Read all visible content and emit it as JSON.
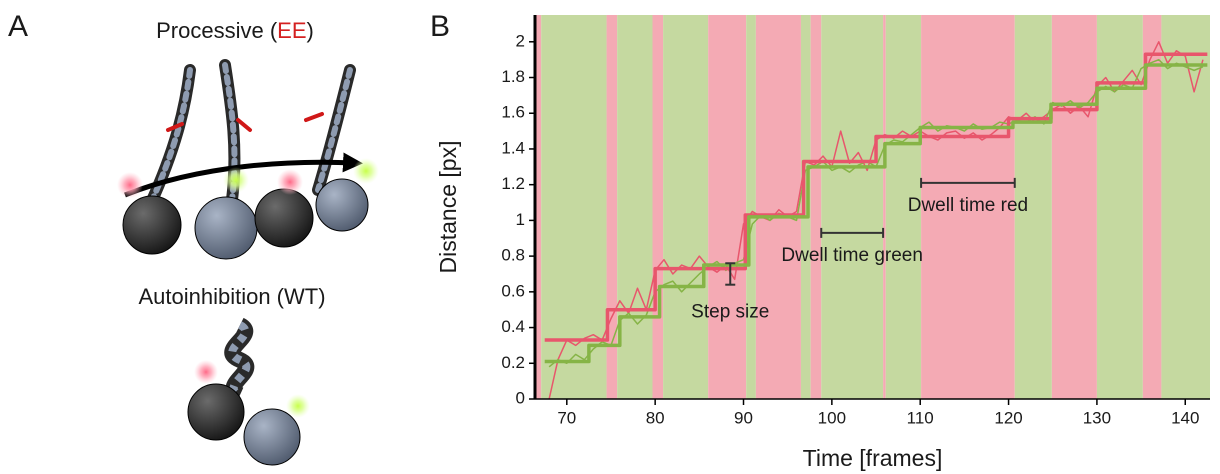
{
  "panel_a": {
    "label": "A",
    "title_parts": [
      "Processive (",
      "EE",
      ")"
    ],
    "subtitle": "Autoinhibition (WT)"
  },
  "chart_data": {
    "type": "line",
    "panel_label": "B",
    "x_label": "Time [frames]",
    "y_label": "Distance [px]",
    "xlim": [
      66.4,
      142.8
    ],
    "ylim": [
      0,
      2.15
    ],
    "xticks": [
      70,
      80,
      90,
      100,
      110,
      120,
      130,
      140
    ],
    "yticks": [
      0,
      0.2,
      0.4,
      0.6,
      0.8,
      1,
      1.2,
      1.4,
      1.6,
      1.8,
      2
    ],
    "bands": [
      {
        "x": [
          66.4,
          67.1
        ],
        "color": "#f4aab4"
      },
      {
        "x": [
          67.1,
          74.5
        ],
        "color": "#c5d9a0"
      },
      {
        "x": [
          74.5,
          75.7
        ],
        "color": "#f4aab4"
      },
      {
        "x": [
          75.7,
          79.7
        ],
        "color": "#c5d9a0"
      },
      {
        "x": [
          79.7,
          80.9
        ],
        "color": "#f4aab4"
      },
      {
        "x": [
          80.9,
          86.0
        ],
        "color": "#c5d9a0"
      },
      {
        "x": [
          86.0,
          90.3
        ],
        "color": "#f4aab4"
      },
      {
        "x": [
          90.3,
          91.4
        ],
        "color": "#c5d9a0"
      },
      {
        "x": [
          91.4,
          96.5
        ],
        "color": "#f4aab4"
      },
      {
        "x": [
          96.5,
          97.6
        ],
        "color": "#c5d9a0"
      },
      {
        "x": [
          97.6,
          98.8
        ],
        "color": "#f4aab4"
      },
      {
        "x": [
          98.8,
          105.8
        ],
        "color": "#c5d9a0"
      },
      {
        "x": [
          105.8,
          106.1
        ],
        "color": "#f4aab4"
      },
      {
        "x": [
          106.1,
          110.1
        ],
        "color": "#c5d9a0"
      },
      {
        "x": [
          110.1,
          120.7
        ],
        "color": "#f4aab4"
      },
      {
        "x": [
          120.7,
          124.9
        ],
        "color": "#c5d9a0"
      },
      {
        "x": [
          124.9,
          130.0
        ],
        "color": "#f4aab4"
      },
      {
        "x": [
          130.0,
          135.2
        ],
        "color": "#c5d9a0"
      },
      {
        "x": [
          135.2,
          137.3
        ],
        "color": "#f4aab4"
      },
      {
        "x": [
          137.3,
          142.8
        ],
        "color": "#c5d9a0"
      }
    ],
    "x": [
      68,
      69,
      70,
      71,
      72,
      73,
      74,
      75,
      76,
      77,
      78,
      79,
      80,
      81,
      82,
      83,
      84,
      85,
      86,
      87,
      88,
      89,
      90,
      91,
      92,
      93,
      94,
      95,
      96,
      97,
      98,
      99,
      100,
      101,
      102,
      103,
      104,
      105,
      106,
      107,
      108,
      109,
      110,
      111,
      112,
      113,
      114,
      115,
      116,
      117,
      118,
      119,
      120,
      121,
      122,
      123,
      124,
      125,
      126,
      127,
      128,
      129,
      130,
      131,
      132,
      133,
      134,
      135,
      136,
      137,
      138,
      139,
      140,
      141,
      142
    ],
    "series": [
      {
        "color": "#e8566c",
        "width": 1.5,
        "values": [
          0.0,
          0.22,
          0.33,
          0.3,
          0.34,
          0.36,
          0.33,
          0.45,
          0.55,
          0.48,
          0.62,
          0.5,
          0.72,
          0.78,
          0.7,
          0.75,
          0.73,
          0.8,
          0.74,
          0.71,
          0.75,
          0.67,
          0.98,
          1.05,
          1.02,
          1.0,
          1.06,
          1.02,
          1.05,
          1.33,
          1.31,
          1.36,
          1.3,
          1.5,
          1.32,
          1.38,
          1.28,
          1.45,
          1.48,
          1.46,
          1.5,
          1.47,
          1.5,
          1.47,
          1.45,
          1.49,
          1.5,
          1.46,
          1.49,
          1.45,
          1.48,
          1.52,
          1.58,
          1.56,
          1.6,
          1.55,
          1.58,
          1.62,
          1.65,
          1.6,
          1.64,
          1.58,
          1.75,
          1.8,
          1.72,
          1.78,
          1.84,
          1.76,
          1.9,
          2.0,
          1.88,
          1.95,
          1.92,
          1.72,
          1.9
        ]
      },
      {
        "color": "#86b446",
        "width": 1.5,
        "values": [
          0.18,
          0.22,
          0.2,
          0.25,
          0.22,
          0.28,
          0.32,
          0.3,
          0.44,
          0.48,
          0.42,
          0.47,
          0.6,
          0.64,
          0.66,
          0.6,
          0.65,
          0.7,
          0.74,
          0.77,
          0.72,
          0.76,
          0.78,
          0.98,
          1.03,
          1.0,
          1.04,
          1.02,
          1.0,
          1.28,
          1.3,
          1.33,
          1.28,
          1.3,
          1.27,
          1.31,
          1.33,
          1.3,
          1.42,
          1.45,
          1.44,
          1.48,
          1.52,
          1.55,
          1.5,
          1.53,
          1.52,
          1.5,
          1.54,
          1.51,
          1.52,
          1.55,
          1.54,
          1.56,
          1.55,
          1.58,
          1.54,
          1.66,
          1.64,
          1.67,
          1.63,
          1.66,
          1.72,
          1.75,
          1.72,
          1.76,
          1.74,
          1.85,
          1.88,
          1.9,
          1.85,
          1.88,
          1.86,
          1.84,
          1.86
        ]
      },
      {
        "color": "#e8566c",
        "width": 3.5,
        "x": [
          67.5,
          74.6,
          74.6,
          80,
          80,
          90.2,
          90.2,
          96.8,
          96.8,
          105,
          105,
          120,
          120,
          124.8,
          124.8,
          130,
          130,
          135.5,
          135.5,
          142.5
        ],
        "values": [
          0.33,
          0.33,
          0.5,
          0.5,
          0.73,
          0.73,
          1.03,
          1.03,
          1.33,
          1.33,
          1.47,
          1.47,
          1.57,
          1.57,
          1.62,
          1.62,
          1.77,
          1.77,
          1.93,
          1.93
        ]
      },
      {
        "color": "#86b446",
        "width": 3.5,
        "x": [
          67.5,
          72.5,
          72.5,
          76,
          76,
          80.5,
          80.5,
          85.5,
          85.5,
          90.6,
          90.6,
          97.3,
          97.3,
          106,
          106,
          110,
          110,
          120.5,
          120.5,
          124.8,
          124.8,
          130,
          130,
          135.5,
          135.5,
          142.5
        ],
        "values": [
          0.21,
          0.21,
          0.3,
          0.3,
          0.46,
          0.46,
          0.63,
          0.63,
          0.75,
          0.75,
          1.02,
          1.02,
          1.3,
          1.3,
          1.43,
          1.43,
          1.52,
          1.52,
          1.55,
          1.55,
          1.65,
          1.65,
          1.74,
          1.74,
          1.87,
          1.87
        ]
      }
    ],
    "annotations": [
      {
        "text": "Step size",
        "x": 88.5,
        "y": [
          0.64,
          0.76
        ]
      },
      {
        "text": "Dwell time green",
        "x": [
          98.8,
          105.8
        ],
        "y": 0.93
      },
      {
        "text": "Dwell time red",
        "x": [
          110.1,
          120.7
        ],
        "y": 1.21
      }
    ]
  }
}
